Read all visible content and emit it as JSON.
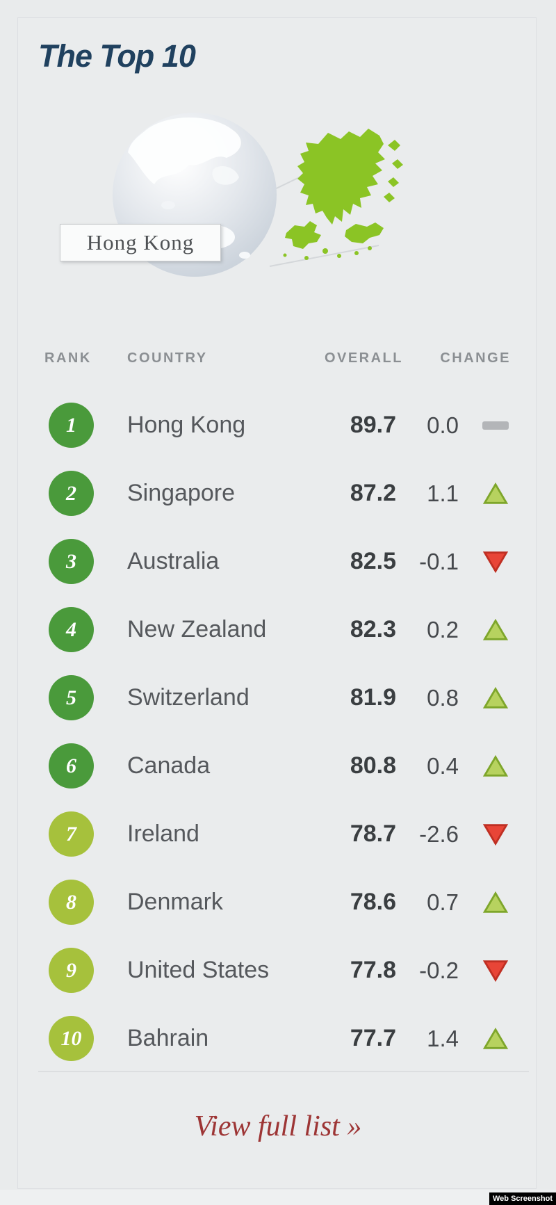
{
  "page": {
    "title": "The Top 10",
    "map_label": "Hong Kong",
    "view_full_list_label": "View full list »",
    "watermark": "Web Screenshot"
  },
  "table": {
    "headers": {
      "rank": "RANK",
      "country": "COUNTRY",
      "overall": "OVERALL",
      "change": "CHANGE"
    },
    "rows": [
      {
        "rank": "1",
        "country": "Hong Kong",
        "overall": "89.7",
        "change": "0.0",
        "direction": "none",
        "tier": "dark"
      },
      {
        "rank": "2",
        "country": "Singapore",
        "overall": "87.2",
        "change": "1.1",
        "direction": "up",
        "tier": "dark"
      },
      {
        "rank": "3",
        "country": "Australia",
        "overall": "82.5",
        "change": "-0.1",
        "direction": "down",
        "tier": "dark"
      },
      {
        "rank": "4",
        "country": "New Zealand",
        "overall": "82.3",
        "change": "0.2",
        "direction": "up",
        "tier": "dark"
      },
      {
        "rank": "5",
        "country": "Switzerland",
        "overall": "81.9",
        "change": "0.8",
        "direction": "up",
        "tier": "dark"
      },
      {
        "rank": "6",
        "country": "Canada",
        "overall": "80.8",
        "change": "0.4",
        "direction": "up",
        "tier": "dark"
      },
      {
        "rank": "7",
        "country": "Ireland",
        "overall": "78.7",
        "change": "-2.6",
        "direction": "down",
        "tier": "light"
      },
      {
        "rank": "8",
        "country": "Denmark",
        "overall": "78.6",
        "change": "0.7",
        "direction": "up",
        "tier": "light"
      },
      {
        "rank": "9",
        "country": "United States",
        "overall": "77.8",
        "change": "-0.2",
        "direction": "down",
        "tier": "light"
      },
      {
        "rank": "10",
        "country": "Bahrain",
        "overall": "77.7",
        "change": "1.4",
        "direction": "up",
        "tier": "light"
      }
    ]
  },
  "colors": {
    "badge_dark_green": "#4a9a3b",
    "badge_light_green": "#a6c13c",
    "map_green": "#8bc425",
    "up_triangle_fill": "#b7d25f",
    "up_triangle_stroke": "#7ea62b",
    "down_triangle_fill": "#e84537",
    "down_triangle_stroke": "#bf2f23",
    "no_change_dash": "#b3b5b8",
    "title_navy": "#20415f",
    "link_red": "#9d3535",
    "background": "#e9ebec"
  }
}
